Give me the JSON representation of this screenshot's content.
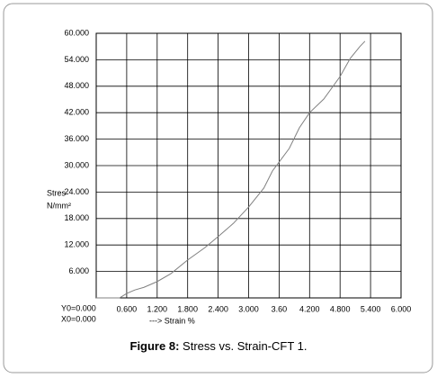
{
  "chart_data": {
    "type": "line",
    "ylabel": [
      "Stres",
      "N/mm²"
    ],
    "xlabel": "---> Strain %",
    "origin_labels": [
      "Y0=0.000",
      "X0=0.000"
    ],
    "caption_label": "Figure 8:",
    "caption_text": "Stress vs. Strain-CFT 1.",
    "x": [
      0,
      0.46,
      0.6,
      0.76,
      0.94,
      1.2,
      1.47,
      1.8,
      2.14,
      2.4,
      2.7,
      3.0,
      3.3,
      3.47,
      3.6,
      3.8,
      4.0,
      4.2,
      4.48,
      4.8,
      5.0,
      5.19,
      5.29
    ],
    "series": [
      {
        "color": "#808080",
        "values": [
          0,
          0,
          1,
          1.8,
          2.4,
          3.7,
          5.5,
          8.6,
          11.4,
          13.9,
          16.9,
          20.6,
          24.9,
          28.8,
          30.8,
          33.9,
          38.6,
          42,
          45.1,
          50.2,
          54.3,
          57,
          58.2
        ]
      }
    ],
    "xlim": [
      0,
      6
    ],
    "ylim": [
      0,
      60
    ],
    "xticks": [
      {
        "value": 0.6,
        "label": "0.600"
      },
      {
        "value": 1.2,
        "label": "1.200"
      },
      {
        "value": 1.8,
        "label": "1.800"
      },
      {
        "value": 2.4,
        "label": "2.400"
      },
      {
        "value": 3.0,
        "label": "3.000"
      },
      {
        "value": 3.6,
        "label": "3.60"
      },
      {
        "value": 4.2,
        "label": "4.200"
      },
      {
        "value": 4.8,
        "label": "4.800"
      },
      {
        "value": 5.4,
        "label": "5.400"
      },
      {
        "value": 6.0,
        "label": "6.000"
      }
    ],
    "yticks": [
      {
        "value": 6,
        "label": "6.000"
      },
      {
        "value": 12,
        "label": "12.000"
      },
      {
        "value": 18,
        "label": "18.000"
      },
      {
        "value": 24,
        "label": "24.000"
      },
      {
        "value": 30,
        "label": "30.000"
      },
      {
        "value": 36,
        "label": "36.000"
      },
      {
        "value": 42,
        "label": "42.000"
      },
      {
        "value": 48,
        "label": "48.000"
      },
      {
        "value": 54,
        "label": "54.000"
      },
      {
        "value": 60,
        "label": "60.000"
      }
    ],
    "grid": true
  }
}
